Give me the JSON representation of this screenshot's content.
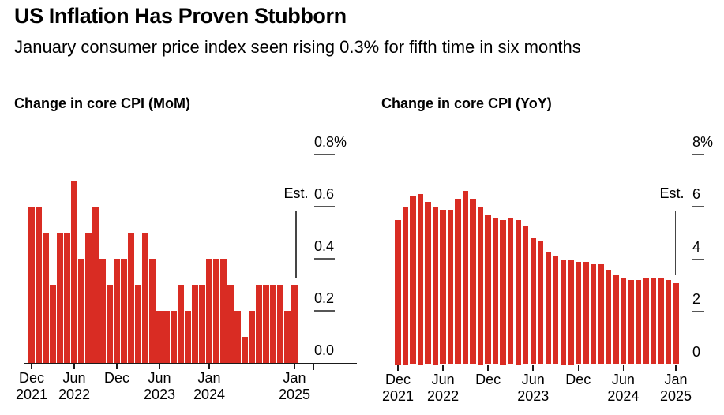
{
  "header": {
    "title": "US Inflation Has Proven Stubborn",
    "subtitle": "January consumer price index seen rising 0.3% for fifth time in six months"
  },
  "colors": {
    "background": "#ffffff",
    "bar_red": "#d92c23",
    "axis_black": "#1a1a1a",
    "tick_gray": "#565656",
    "est_line_gray": "#454545",
    "text_black": "#000000"
  },
  "chart_data": [
    {
      "type": "bar",
      "title": "Change in core CPI (MoM)",
      "unit": "%",
      "ylim": [
        0,
        0.8
      ],
      "grid": false,
      "categories": [
        "Dec 2021",
        "Jan 2022",
        "Feb 2022",
        "Mar 2022",
        "Apr 2022",
        "May 2022",
        "Jun 2022",
        "Jul 2022",
        "Aug 2022",
        "Sep 2022",
        "Oct 2022",
        "Nov 2022",
        "Dec 2022",
        "Jan 2023",
        "Feb 2023",
        "Mar 2023",
        "Apr 2023",
        "May 2023",
        "Jun 2023",
        "Jul 2023",
        "Aug 2023",
        "Sep 2023",
        "Oct 2023",
        "Nov 2023",
        "Dec 2023",
        "Jan 2024",
        "Feb 2024",
        "Mar 2024",
        "Apr 2024",
        "May 2024",
        "Jun 2024",
        "Jul 2024",
        "Aug 2024",
        "Sep 2024",
        "Oct 2024",
        "Nov 2024",
        "Dec 2024",
        "Jan 2025"
      ],
      "values": [
        0.6,
        0.6,
        0.5,
        0.3,
        0.5,
        0.5,
        0.7,
        0.4,
        0.5,
        0.6,
        0.4,
        0.3,
        0.4,
        0.4,
        0.5,
        0.3,
        0.5,
        0.4,
        0.2,
        0.2,
        0.2,
        0.3,
        0.2,
        0.3,
        0.3,
        0.4,
        0.4,
        0.4,
        0.3,
        0.2,
        0.1,
        0.2,
        0.3,
        0.3,
        0.3,
        0.3,
        0.2,
        0.3
      ],
      "y_ticks": [
        {
          "value": 0.8,
          "label": "0.8%"
        },
        {
          "value": 0.6,
          "label": "0.6"
        },
        {
          "value": 0.4,
          "label": "0.4"
        },
        {
          "value": 0.2,
          "label": "0.2"
        },
        {
          "value": 0.0,
          "label": "0.0"
        }
      ],
      "x_ticks": [
        {
          "index": 0,
          "month": "Dec",
          "year": "2021"
        },
        {
          "index": 6,
          "month": "Jun",
          "year": "2022"
        },
        {
          "index": 12,
          "month": "Dec",
          "year": ""
        },
        {
          "index": 18,
          "month": "Jun",
          "year": "2023"
        },
        {
          "index": 25,
          "month": "Jan",
          "year": "2024"
        },
        {
          "index": 37,
          "month": "Jan",
          "year": "2025"
        }
      ],
      "estimate": {
        "label": "Est.",
        "index": 37,
        "value": 0.3
      }
    },
    {
      "type": "bar",
      "title": "Change in core CPI (YoY)",
      "unit": "%",
      "ylim": [
        0,
        8
      ],
      "grid": false,
      "categories": [
        "Dec 2021",
        "Jan 2022",
        "Feb 2022",
        "Mar 2022",
        "Apr 2022",
        "May 2022",
        "Jun 2022",
        "Jul 2022",
        "Aug 2022",
        "Sep 2022",
        "Oct 2022",
        "Nov 2022",
        "Dec 2022",
        "Jan 2023",
        "Feb 2023",
        "Mar 2023",
        "Apr 2023",
        "May 2023",
        "Jun 2023",
        "Jul 2023",
        "Aug 2023",
        "Sep 2023",
        "Oct 2023",
        "Nov 2023",
        "Dec 2023",
        "Jan 2024",
        "Feb 2024",
        "Mar 2024",
        "Apr 2024",
        "May 2024",
        "Jun 2024",
        "Jul 2024",
        "Aug 2024",
        "Sep 2024",
        "Oct 2024",
        "Nov 2024",
        "Dec 2024",
        "Jan 2025"
      ],
      "values": [
        5.5,
        6.0,
        6.4,
        6.5,
        6.2,
        6.0,
        5.9,
        5.9,
        6.3,
        6.6,
        6.3,
        6.0,
        5.7,
        5.6,
        5.5,
        5.6,
        5.5,
        5.3,
        4.8,
        4.7,
        4.3,
        4.1,
        4.0,
        4.0,
        3.9,
        3.9,
        3.8,
        3.8,
        3.6,
        3.4,
        3.3,
        3.2,
        3.2,
        3.3,
        3.3,
        3.3,
        3.2,
        3.1
      ],
      "y_ticks": [
        {
          "value": 8,
          "label": "8%"
        },
        {
          "value": 6,
          "label": "6"
        },
        {
          "value": 4,
          "label": "4"
        },
        {
          "value": 2,
          "label": "2"
        },
        {
          "value": 0,
          "label": "0"
        }
      ],
      "x_ticks": [
        {
          "index": 0,
          "month": "Dec",
          "year": "2021"
        },
        {
          "index": 6,
          "month": "Jun",
          "year": "2022"
        },
        {
          "index": 12,
          "month": "Dec",
          "year": ""
        },
        {
          "index": 18,
          "month": "Jun",
          "year": "2023"
        },
        {
          "index": 24,
          "month": "Dec",
          "year": ""
        },
        {
          "index": 30,
          "month": "Jun",
          "year": "2024"
        },
        {
          "index": 37,
          "month": "Jan",
          "year": "2025"
        }
      ],
      "estimate": {
        "label": "Est.",
        "index": 37,
        "value": 3.1
      }
    }
  ]
}
